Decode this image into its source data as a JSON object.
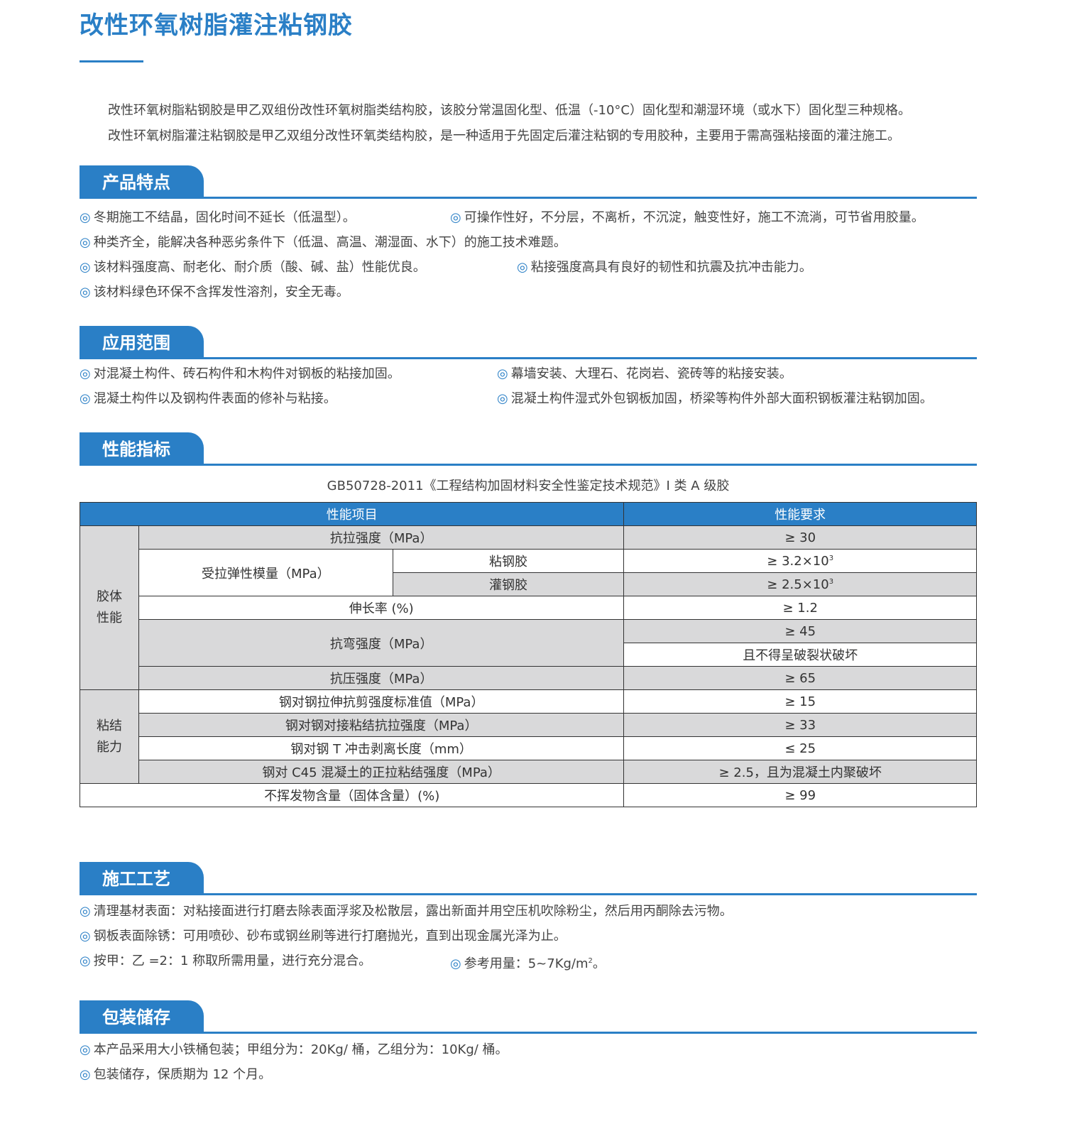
{
  "title": "改性环氧树脂灌注粘钢胶",
  "intro": [
    "改性环氧树脂粘钢胶是甲乙双组份改性环氧树脂类结构胶，该胶分常温固化型、低温（-10°C）固化型和潮湿环境（或水下）固化型三种规格。",
    "改性环氧树脂灌注粘钢胶是甲乙双组分改性环氧类结构胶，是一种适用于先固定后灌注粘钢的专用胶种，主要用于需高强粘接面的灌注施工。"
  ],
  "bullet": "◎",
  "colors": {
    "accent": "#2a7fc6",
    "cell_gray": "#d9d9da"
  },
  "features": {
    "title": "产品特点",
    "items": [
      "冬期施工不结晶，固化时间不延长（低温型）。",
      "可操作性好，不分层，不离析，不沉淀，触变性好，施工不流淌，可节省用胶量。",
      "种类齐全，能解决各种恶劣条件下（低温、高温、潮湿面、水下）的施工技术难题。",
      "该材料强度高、耐老化、耐介质（酸、碱、盐）性能优良。",
      "粘接强度高具有良好的韧性和抗震及抗冲击能力。",
      "该材料绿色环保不含挥发性溶剂，安全无毒。"
    ]
  },
  "applications": {
    "title": "应用范围",
    "items": [
      "对混凝土构件、砖石构件和木构件对钢板的粘接加固。",
      "幕墙安装、大理石、花岗岩、瓷砖等的粘接安装。",
      "混凝土构件以及钢构件表面的修补与粘接。",
      "混凝土构件湿式外包钢板加固，桥梁等构件外部大面积钢板灌注粘钢加固。"
    ]
  },
  "performance": {
    "title": "性能指标",
    "standard": "GB50728-2011《工程结构加固材料安全性鉴定技术规范》I 类 A 级胶",
    "headers": [
      "性能项目",
      "性能要求"
    ],
    "group1": "胶体\n性能",
    "group2": "粘结\n能力",
    "rows": {
      "tensile": [
        "抗拉强度（MPa）",
        "≥ 30"
      ],
      "modulus": "受拉弹性模量（MPa）",
      "mod_a": [
        "粘钢胶",
        "≥ 3.2×10",
        "3"
      ],
      "mod_b": [
        "灌钢胶",
        "≥ 2.5×10",
        "3"
      ],
      "elong": [
        "伸长率 (%)",
        "≥ 1.2"
      ],
      "bend": [
        "抗弯强度（MPa）",
        "≥ 45",
        "且不得呈破裂状破坏"
      ],
      "comp": [
        "抗压强度（MPa）",
        "≥ 65"
      ],
      "shear": [
        "钢对钢拉伸抗剪强度标准值（MPa）",
        "≥ 15"
      ],
      "butt": [
        "钢对钢对接粘结抗拉强度（MPa）",
        "≥ 33"
      ],
      "peel": [
        "钢对钢 T 冲击剥离长度（mm）",
        "≤ 25"
      ],
      "c45": [
        "钢对 C45 混凝土的正拉粘结强度（MPa）",
        "≥ 2.5，且为混凝土内聚破坏"
      ],
      "solid": [
        "不挥发物含量（固体含量）(%)",
        "≥ 99"
      ]
    }
  },
  "construction": {
    "title": "施工工艺",
    "items": [
      "清理基材表面：对粘接面进行打磨去除表面浮浆及松散层，露出新面并用空压机吹除粉尘，然后用丙酮除去污物。",
      "钢板表面除锈：可用喷砂、砂布或钢丝刷等进行打磨抛光，直到出现金属光泽为止。",
      "按甲：乙 =2：1 称取所需用量，进行充分混合。",
      "参考用量：5~7Kg/m",
      "2",
      "。"
    ]
  },
  "packaging": {
    "title": "包装储存",
    "items": [
      "本产品采用大小铁桶包装；甲组分为：20Kg/ 桶，乙组分为：10Kg/ 桶。",
      "包装储存，保质期为 12 个月。"
    ]
  }
}
